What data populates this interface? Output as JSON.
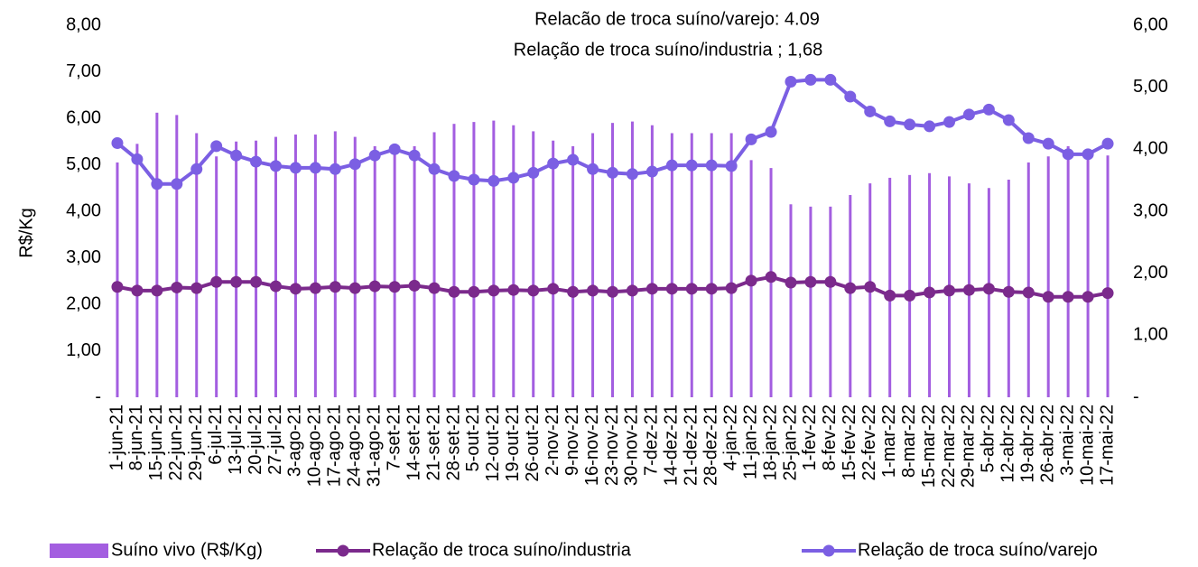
{
  "chart_data": {
    "type": "bar",
    "annotations": [
      "Relacão de troca suíno/varejo: 4.09",
      "Relação de troca suíno/industria ; 1,68"
    ],
    "y_label": "R$/Kg",
    "categories": [
      "1-jun-21",
      "8-jun-21",
      "15-jun-21",
      "22-jun-21",
      "29-jun-21",
      "6-jul-21",
      "13-jul-21",
      "20-jul-21",
      "27-jul-21",
      "3-ago-21",
      "10-ago-21",
      "17-ago-21",
      "24-ago-21",
      "31-ago-21",
      "7-set-21",
      "14-set-21",
      "21-set-21",
      "28-set-21",
      "5-out-21",
      "12-out-21",
      "19-out-21",
      "26-out-21",
      "2-nov-21",
      "9-nov-21",
      "16-nov-21",
      "23-nov-21",
      "30-nov-21",
      "7-dez-21",
      "14-dez-21",
      "21-dez-21",
      "28-dez-21",
      "4-jan-22",
      "11-jan-22",
      "18-jan-22",
      "25-jan-22",
      "1-fev-22",
      "8-fev-22",
      "15-fev-22",
      "22-fev-22",
      "1-mar-22",
      "8-mar-22",
      "15-mar-22",
      "22-mar-22",
      "29-mar-22",
      "5-abr-22",
      "12-abr-22",
      "19-abr-22",
      "26-abr-22",
      "3-mai-22",
      "10-mai-22",
      "17-mai-22"
    ],
    "series": [
      {
        "name": "Suíno vivo (R$/Kg)",
        "type": "bar",
        "color": "#a35ee0",
        "values": [
          5.05,
          5.45,
          6.12,
          6.07,
          5.68,
          5.18,
          5.5,
          5.52,
          5.6,
          5.65,
          5.65,
          5.72,
          5.6,
          5.4,
          5.35,
          5.4,
          5.7,
          5.88,
          5.92,
          5.95,
          5.85,
          5.72,
          5.52,
          5.4,
          5.68,
          5.9,
          5.93,
          5.85,
          5.68,
          5.68,
          5.68,
          5.68,
          5.1,
          4.93,
          4.15,
          4.1,
          4.1,
          4.35,
          4.6,
          4.72,
          4.78,
          4.82,
          4.75,
          4.6,
          4.5,
          4.68,
          5.05,
          5.18,
          5.4,
          5.22,
          5.2
        ]
      },
      {
        "name": "Relação de troca suíno/industria",
        "type": "line",
        "axis": "y2",
        "color": "#7b2a8c",
        "values": [
          1.78,
          1.72,
          1.72,
          1.77,
          1.76,
          1.86,
          1.86,
          1.86,
          1.79,
          1.75,
          1.76,
          1.78,
          1.76,
          1.79,
          1.78,
          1.8,
          1.76,
          1.7,
          1.7,
          1.72,
          1.73,
          1.72,
          1.75,
          1.7,
          1.72,
          1.7,
          1.72,
          1.75,
          1.75,
          1.75,
          1.75,
          1.76,
          1.88,
          1.94,
          1.85,
          1.86,
          1.86,
          1.76,
          1.78,
          1.64,
          1.64,
          1.69,
          1.72,
          1.73,
          1.75,
          1.7,
          1.69,
          1.62,
          1.62,
          1.62,
          1.68
        ]
      },
      {
        "name": "Relação de troca suíno/varejo",
        "type": "line",
        "axis": "y2",
        "color": "#7b5fe3",
        "values": [
          4.1,
          3.84,
          3.44,
          3.44,
          3.68,
          4.05,
          3.9,
          3.8,
          3.73,
          3.7,
          3.7,
          3.68,
          3.76,
          3.9,
          4.0,
          3.9,
          3.68,
          3.57,
          3.51,
          3.49,
          3.54,
          3.62,
          3.77,
          3.83,
          3.68,
          3.62,
          3.6,
          3.64,
          3.74,
          3.74,
          3.74,
          3.73,
          4.16,
          4.28,
          5.09,
          5.12,
          5.12,
          4.85,
          4.61,
          4.45,
          4.4,
          4.37,
          4.44,
          4.56,
          4.64,
          4.47,
          4.18,
          4.09,
          3.92,
          3.92,
          4.09
        ]
      }
    ],
    "ylim": [
      0,
      8
    ],
    "yticks": [
      {
        "value": 0,
        "label": "-"
      },
      {
        "value": 1,
        "label": "1,00"
      },
      {
        "value": 2,
        "label": "2,00"
      },
      {
        "value": 3,
        "label": "3,00"
      },
      {
        "value": 4,
        "label": "4,00"
      },
      {
        "value": 5,
        "label": "5,00"
      },
      {
        "value": 6,
        "label": "6,00"
      },
      {
        "value": 7,
        "label": "7,00"
      },
      {
        "value": 8,
        "label": "8,00"
      }
    ],
    "y2lim": [
      0,
      6
    ],
    "y2ticks": [
      {
        "value": 0,
        "label": "-"
      },
      {
        "value": 1,
        "label": "1,00"
      },
      {
        "value": 2,
        "label": "2,00"
      },
      {
        "value": 3,
        "label": "3,00"
      },
      {
        "value": 4,
        "label": "4,00"
      },
      {
        "value": 5,
        "label": "5,00"
      },
      {
        "value": 6,
        "label": "6,00"
      }
    ],
    "legend": "bottom"
  }
}
